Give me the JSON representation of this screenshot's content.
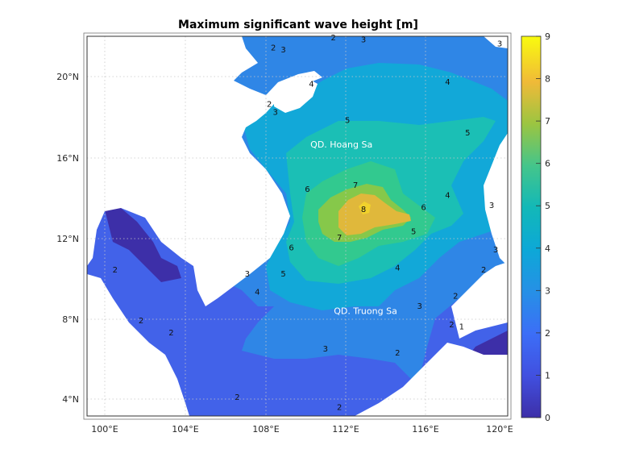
{
  "title": "Maximum significant wave height [m]",
  "lon_ticks": [
    "100°E",
    "104°E",
    "108°E",
    "112°E",
    "116°E",
    "120°E"
  ],
  "lat_ticks": [
    "20°N",
    "16°N",
    "12°N",
    "8°N",
    "4°N"
  ],
  "map_extent": {
    "lon": [
      99.2,
      120.2
    ],
    "lat": [
      3.2,
      22.0
    ]
  },
  "places": [
    {
      "name": "QD. Hoang Sa",
      "lon": 111.9,
      "lat": 16.5
    },
    {
      "name": "QD. Truong Sa",
      "lon": 113.1,
      "lat": 8.25
    }
  ],
  "colorbar": {
    "min": 0,
    "max": 9,
    "ticks": [
      "0",
      "1",
      "2",
      "3",
      "4",
      "5",
      "6",
      "7",
      "8",
      "9"
    ]
  },
  "contour_labels": [
    {
      "v": "2",
      "lon": 108.5,
      "lat": 21.3
    },
    {
      "v": "3",
      "lon": 109.0,
      "lat": 21.2
    },
    {
      "v": "2",
      "lon": 111.5,
      "lat": 21.8
    },
    {
      "v": "3",
      "lon": 113.0,
      "lat": 21.7
    },
    {
      "v": "3",
      "lon": 119.8,
      "lat": 21.5
    },
    {
      "v": "4",
      "lon": 117.2,
      "lat": 19.6
    },
    {
      "v": "4",
      "lon": 110.4,
      "lat": 19.5
    },
    {
      "v": "2",
      "lon": 108.3,
      "lat": 18.5
    },
    {
      "v": "3",
      "lon": 108.6,
      "lat": 18.1
    },
    {
      "v": "5",
      "lon": 112.2,
      "lat": 17.7
    },
    {
      "v": "5",
      "lon": 118.2,
      "lat": 17.1
    },
    {
      "v": "7",
      "lon": 112.6,
      "lat": 14.5
    },
    {
      "v": "6",
      "lon": 110.2,
      "lat": 14.3
    },
    {
      "v": "8",
      "lon": 113.0,
      "lat": 13.3
    },
    {
      "v": "6",
      "lon": 116.0,
      "lat": 13.4
    },
    {
      "v": "7",
      "lon": 111.8,
      "lat": 11.9
    },
    {
      "v": "5",
      "lon": 115.5,
      "lat": 12.2
    },
    {
      "v": "6",
      "lon": 109.4,
      "lat": 11.4
    },
    {
      "v": "4",
      "lon": 117.2,
      "lat": 14.0
    },
    {
      "v": "3",
      "lon": 119.4,
      "lat": 13.5
    },
    {
      "v": "4",
      "lon": 114.7,
      "lat": 10.4
    },
    {
      "v": "5",
      "lon": 109.0,
      "lat": 10.1
    },
    {
      "v": "3",
      "lon": 107.2,
      "lat": 10.1
    },
    {
      "v": "4",
      "lon": 107.7,
      "lat": 9.2
    },
    {
      "v": "3",
      "lon": 115.8,
      "lat": 8.5
    },
    {
      "v": "2",
      "lon": 117.6,
      "lat": 9.0
    },
    {
      "v": "2",
      "lon": 100.6,
      "lat": 10.3
    },
    {
      "v": "2",
      "lon": 101.9,
      "lat": 7.8
    },
    {
      "v": "2",
      "lon": 103.4,
      "lat": 7.2
    },
    {
      "v": "3",
      "lon": 111.1,
      "lat": 6.4
    },
    {
      "v": "2",
      "lon": 114.7,
      "lat": 6.2
    },
    {
      "v": "2",
      "lon": 106.7,
      "lat": 4.0
    },
    {
      "v": "2",
      "lon": 111.8,
      "lat": 3.5
    },
    {
      "v": "1",
      "lon": 117.9,
      "lat": 7.5
    },
    {
      "v": "2",
      "lon": 117.4,
      "lat": 7.6
    },
    {
      "v": "3",
      "lon": 119.6,
      "lat": 11.3
    },
    {
      "v": "2",
      "lon": 119.0,
      "lat": 10.3
    }
  ],
  "colors": {
    "ocean_deep": "#3d2fa8",
    "ocean_low": "#4262e9",
    "ocean_mid": "#2f86e6",
    "land": "#ffffff"
  }
}
